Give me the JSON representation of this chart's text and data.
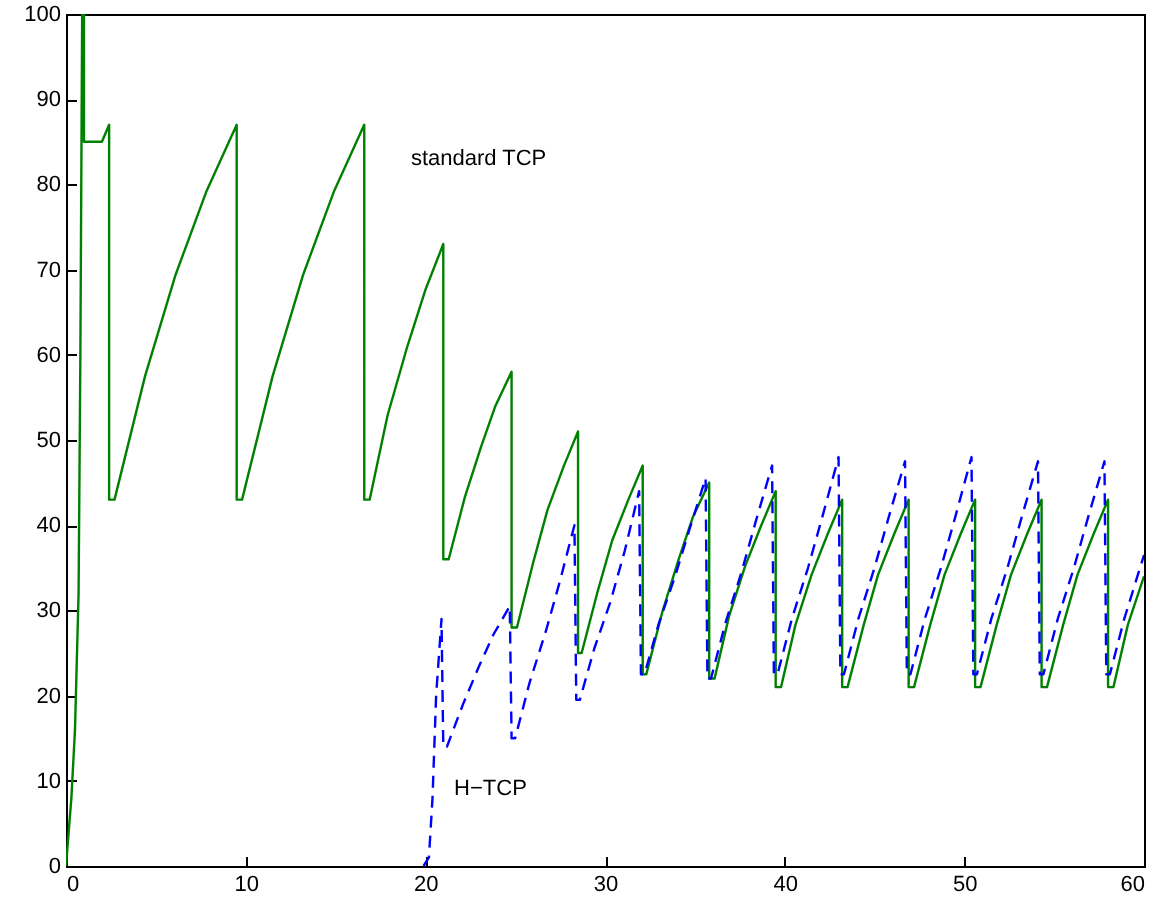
{
  "chart_data": {
    "type": "line",
    "xlim": [
      0,
      60
    ],
    "xticks": [
      0,
      10,
      20,
      30,
      40,
      50,
      60
    ],
    "ylim": [
      0,
      100
    ],
    "yticks": [
      0,
      10,
      20,
      30,
      40,
      50,
      60,
      70,
      80,
      90,
      100
    ],
    "series": [
      {
        "name": "standard TCP",
        "color": "#008000",
        "line_style": "solid",
        "x": [
          0,
          0.3,
          0.5,
          0.7,
          0.8,
          0.9,
          1.0,
          1.0,
          2.0,
          2.4,
          2.4,
          2.7,
          4.4,
          6.1,
          7.8,
          9.5,
          9.5,
          9.8,
          11.5,
          13.2,
          14.9,
          16.6,
          16.6,
          16.9,
          17.9,
          19.0,
          20.0,
          21.0,
          21.0,
          21.3,
          22.2,
          23.1,
          23.9,
          24.8,
          24.8,
          25.1,
          26.0,
          26.8,
          27.7,
          28.5,
          28.5,
          28.7,
          29.6,
          30.4,
          31.3,
          32.1,
          32.1,
          32.3,
          33.2,
          34.1,
          34.9,
          35.8,
          35.8,
          36.1,
          36.9,
          37.8,
          38.7,
          39.5,
          39.5,
          39.8,
          40.6,
          41.5,
          42.4,
          43.2,
          43.2,
          43.5,
          44.4,
          45.2,
          46.1,
          46.9,
          46.9,
          47.2,
          48.1,
          48.9,
          49.8,
          50.6,
          50.6,
          50.9,
          51.8,
          52.6,
          53.5,
          54.3,
          54.3,
          54.6,
          55.5,
          56.3,
          57.2,
          58.0,
          58.0,
          58.3,
          59.1,
          60
        ],
        "values": [
          0,
          8,
          16,
          32,
          60,
          100,
          100,
          85,
          85,
          87,
          43,
          43,
          57.5,
          69.4,
          79.1,
          87,
          43,
          43,
          57.5,
          69.4,
          79.1,
          87,
          43,
          43,
          52.9,
          61,
          67.6,
          73,
          36,
          36,
          43.3,
          49.2,
          54,
          58,
          28,
          28,
          35.6,
          41.8,
          46.9,
          51,
          25,
          25,
          32.3,
          38.2,
          43,
          47,
          22.5,
          22.5,
          29.9,
          36,
          41,
          45,
          22,
          22,
          29.3,
          35.2,
          40,
          44,
          21,
          21,
          28.3,
          34.2,
          39,
          43,
          21,
          21,
          28.3,
          34.2,
          39,
          43,
          21,
          21,
          28.3,
          34.2,
          39,
          43,
          21,
          21,
          28.3,
          34.2,
          39,
          43,
          21,
          21,
          28.3,
          34.2,
          39,
          43,
          21,
          21,
          28.3,
          34
        ]
      },
      {
        "name": "H−TCP",
        "color": "#0000ff",
        "line_style": "dashed",
        "x": [
          19.9,
          20.2,
          20.4,
          20.6,
          20.9,
          21.0,
          21.2,
          22.1,
          23.0,
          23.8,
          24.7,
          24.8,
          25.0,
          25.8,
          26.7,
          27.5,
          28.3,
          28.4,
          28.6,
          29.4,
          30.3,
          31.1,
          31.9,
          32.0,
          32.2,
          33.0,
          33.9,
          34.7,
          35.6,
          35.7,
          35.9,
          36.7,
          37.6,
          38.4,
          39.3,
          39.4,
          39.6,
          40.4,
          41.3,
          42.1,
          43.0,
          43.1,
          43.3,
          44.1,
          45.0,
          45.8,
          46.7,
          46.8,
          47.0,
          47.8,
          48.7,
          49.5,
          50.4,
          50.5,
          50.7,
          51.5,
          52.4,
          53.2,
          54.1,
          54.2,
          54.4,
          55.2,
          56.1,
          56.9,
          57.8,
          57.9,
          58.1,
          58.9,
          60
        ],
        "values": [
          0,
          1,
          8,
          20,
          29,
          14,
          14,
          19,
          23.5,
          27.2,
          30.5,
          15,
          15,
          21.5,
          27.5,
          33.5,
          40,
          19.5,
          19.5,
          25.5,
          31,
          37,
          44,
          22.5,
          22.5,
          28.5,
          34,
          39.5,
          45.5,
          22,
          22,
          28.5,
          34.5,
          40.5,
          47,
          22.5,
          22.5,
          29,
          35,
          41,
          48,
          22.5,
          22.5,
          29,
          35,
          41,
          47.5,
          22.5,
          22.5,
          29,
          35,
          41,
          48,
          22.5,
          22.5,
          29,
          35,
          41,
          47.5,
          22.5,
          22.5,
          29,
          35,
          41,
          47.5,
          22.5,
          22.5,
          29,
          36.5
        ]
      }
    ]
  }
}
